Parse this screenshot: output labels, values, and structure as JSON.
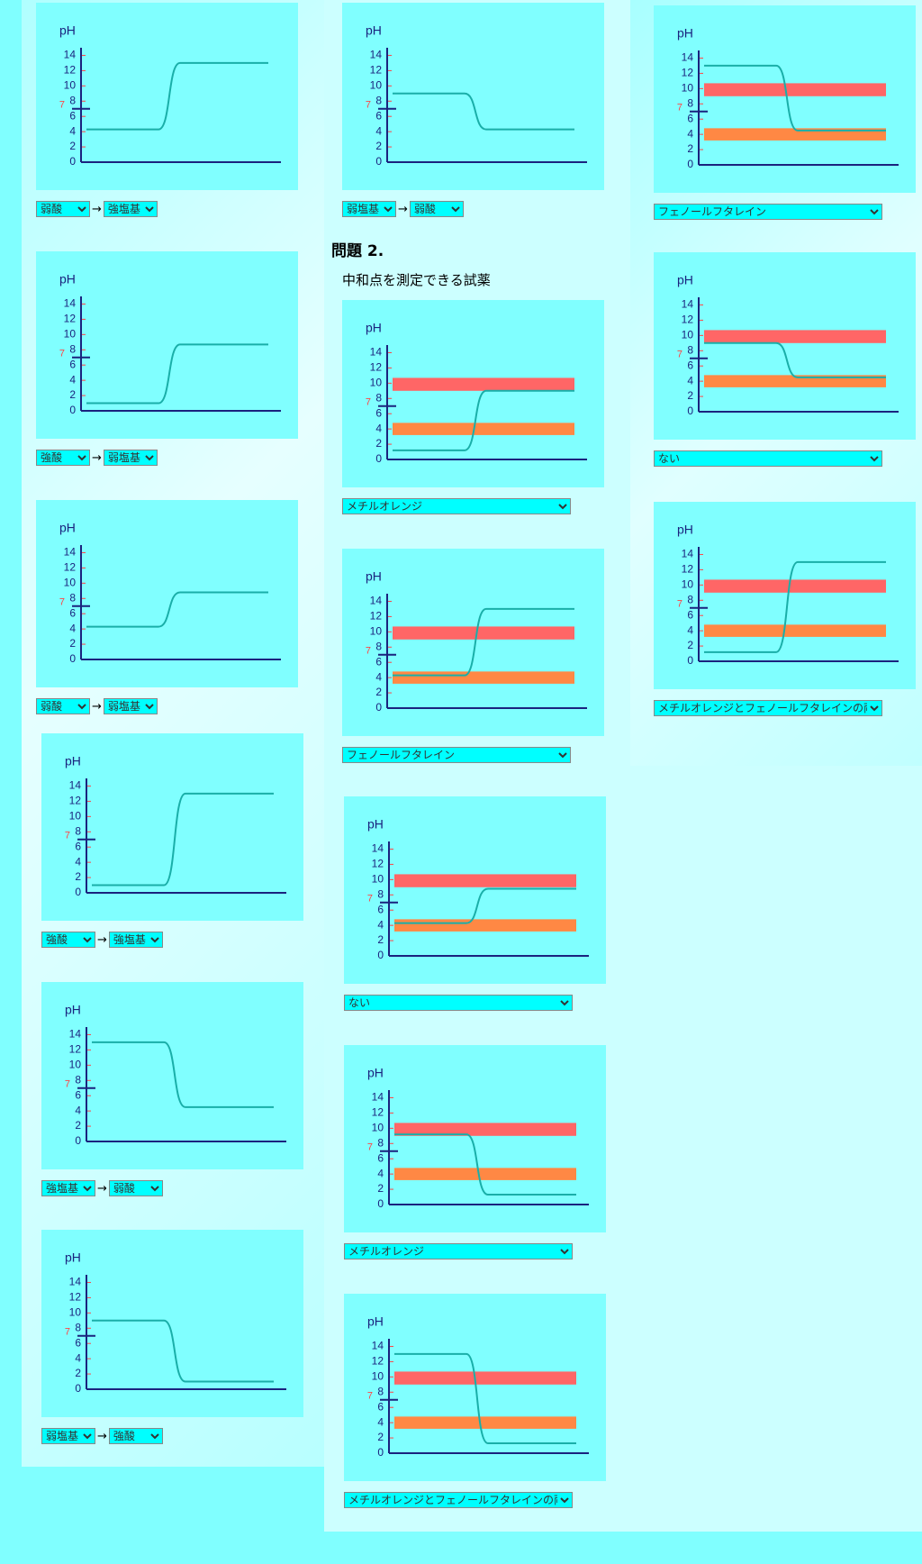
{
  "heading": "問題 2.",
  "subheading": "中和点を測定できる試薬",
  "arrow": "→",
  "ph_label": "pH",
  "ylim": [
    0,
    15
  ],
  "yticks": [
    0,
    2,
    4,
    6,
    8,
    10,
    12,
    14
  ],
  "neutral": 7,
  "bands": [
    {
      "range": [
        9,
        10.7
      ],
      "color": "#ff6666"
    },
    {
      "range": [
        3.2,
        4.8
      ],
      "color": "#ff8844"
    }
  ],
  "columns": [
    [
      {
        "start": 4.3,
        "end": 13,
        "selects": [
          "弱酸",
          "強塩基"
        ]
      },
      {
        "start": 1,
        "end": 8.7,
        "selects": [
          "強酸",
          "弱塩基"
        ]
      },
      {
        "start": 4.3,
        "end": 8.8,
        "selects": [
          "弱酸",
          "弱塩基"
        ]
      },
      {
        "start": 1,
        "end": 13,
        "selects": [
          "強酸",
          "強塩基"
        ]
      },
      {
        "start": 13,
        "end": 4.5,
        "selects": [
          "強塩基",
          "弱酸"
        ]
      },
      {
        "start": 9,
        "end": 1,
        "selects": [
          "弱塩基",
          "強酸"
        ]
      }
    ],
    [
      {
        "start": 9,
        "end": 4.3,
        "selects": [
          "弱塩基",
          "弱酸"
        ]
      },
      {
        "start": 1.2,
        "end": 9,
        "indicators": true,
        "selects": [
          "メチルオレンジ"
        ]
      },
      {
        "start": 4.3,
        "end": 13,
        "indicators": true,
        "selects": [
          "フェノールフタレイン"
        ]
      },
      {
        "start": 4.3,
        "end": 8.8,
        "indicators": true,
        "selects": [
          "ない"
        ]
      },
      {
        "start": 9.2,
        "end": 1.3,
        "indicators": true,
        "selects": [
          "メチルオレンジ"
        ]
      },
      {
        "start": 13,
        "end": 1.3,
        "indicators": true,
        "selects": [
          "メチルオレンジとフェノールフタレインの両方"
        ]
      }
    ],
    [
      {
        "start": 13,
        "end": 4.5,
        "indicators": true,
        "selects": [
          "フェノールフタレイン"
        ]
      },
      {
        "start": 9,
        "end": 4.5,
        "indicators": true,
        "selects": [
          "ない"
        ]
      },
      {
        "start": 1.2,
        "end": 13,
        "indicators": true,
        "selects": [
          "メチルオレンジとフェノールフタレインの両方"
        ]
      }
    ]
  ]
}
